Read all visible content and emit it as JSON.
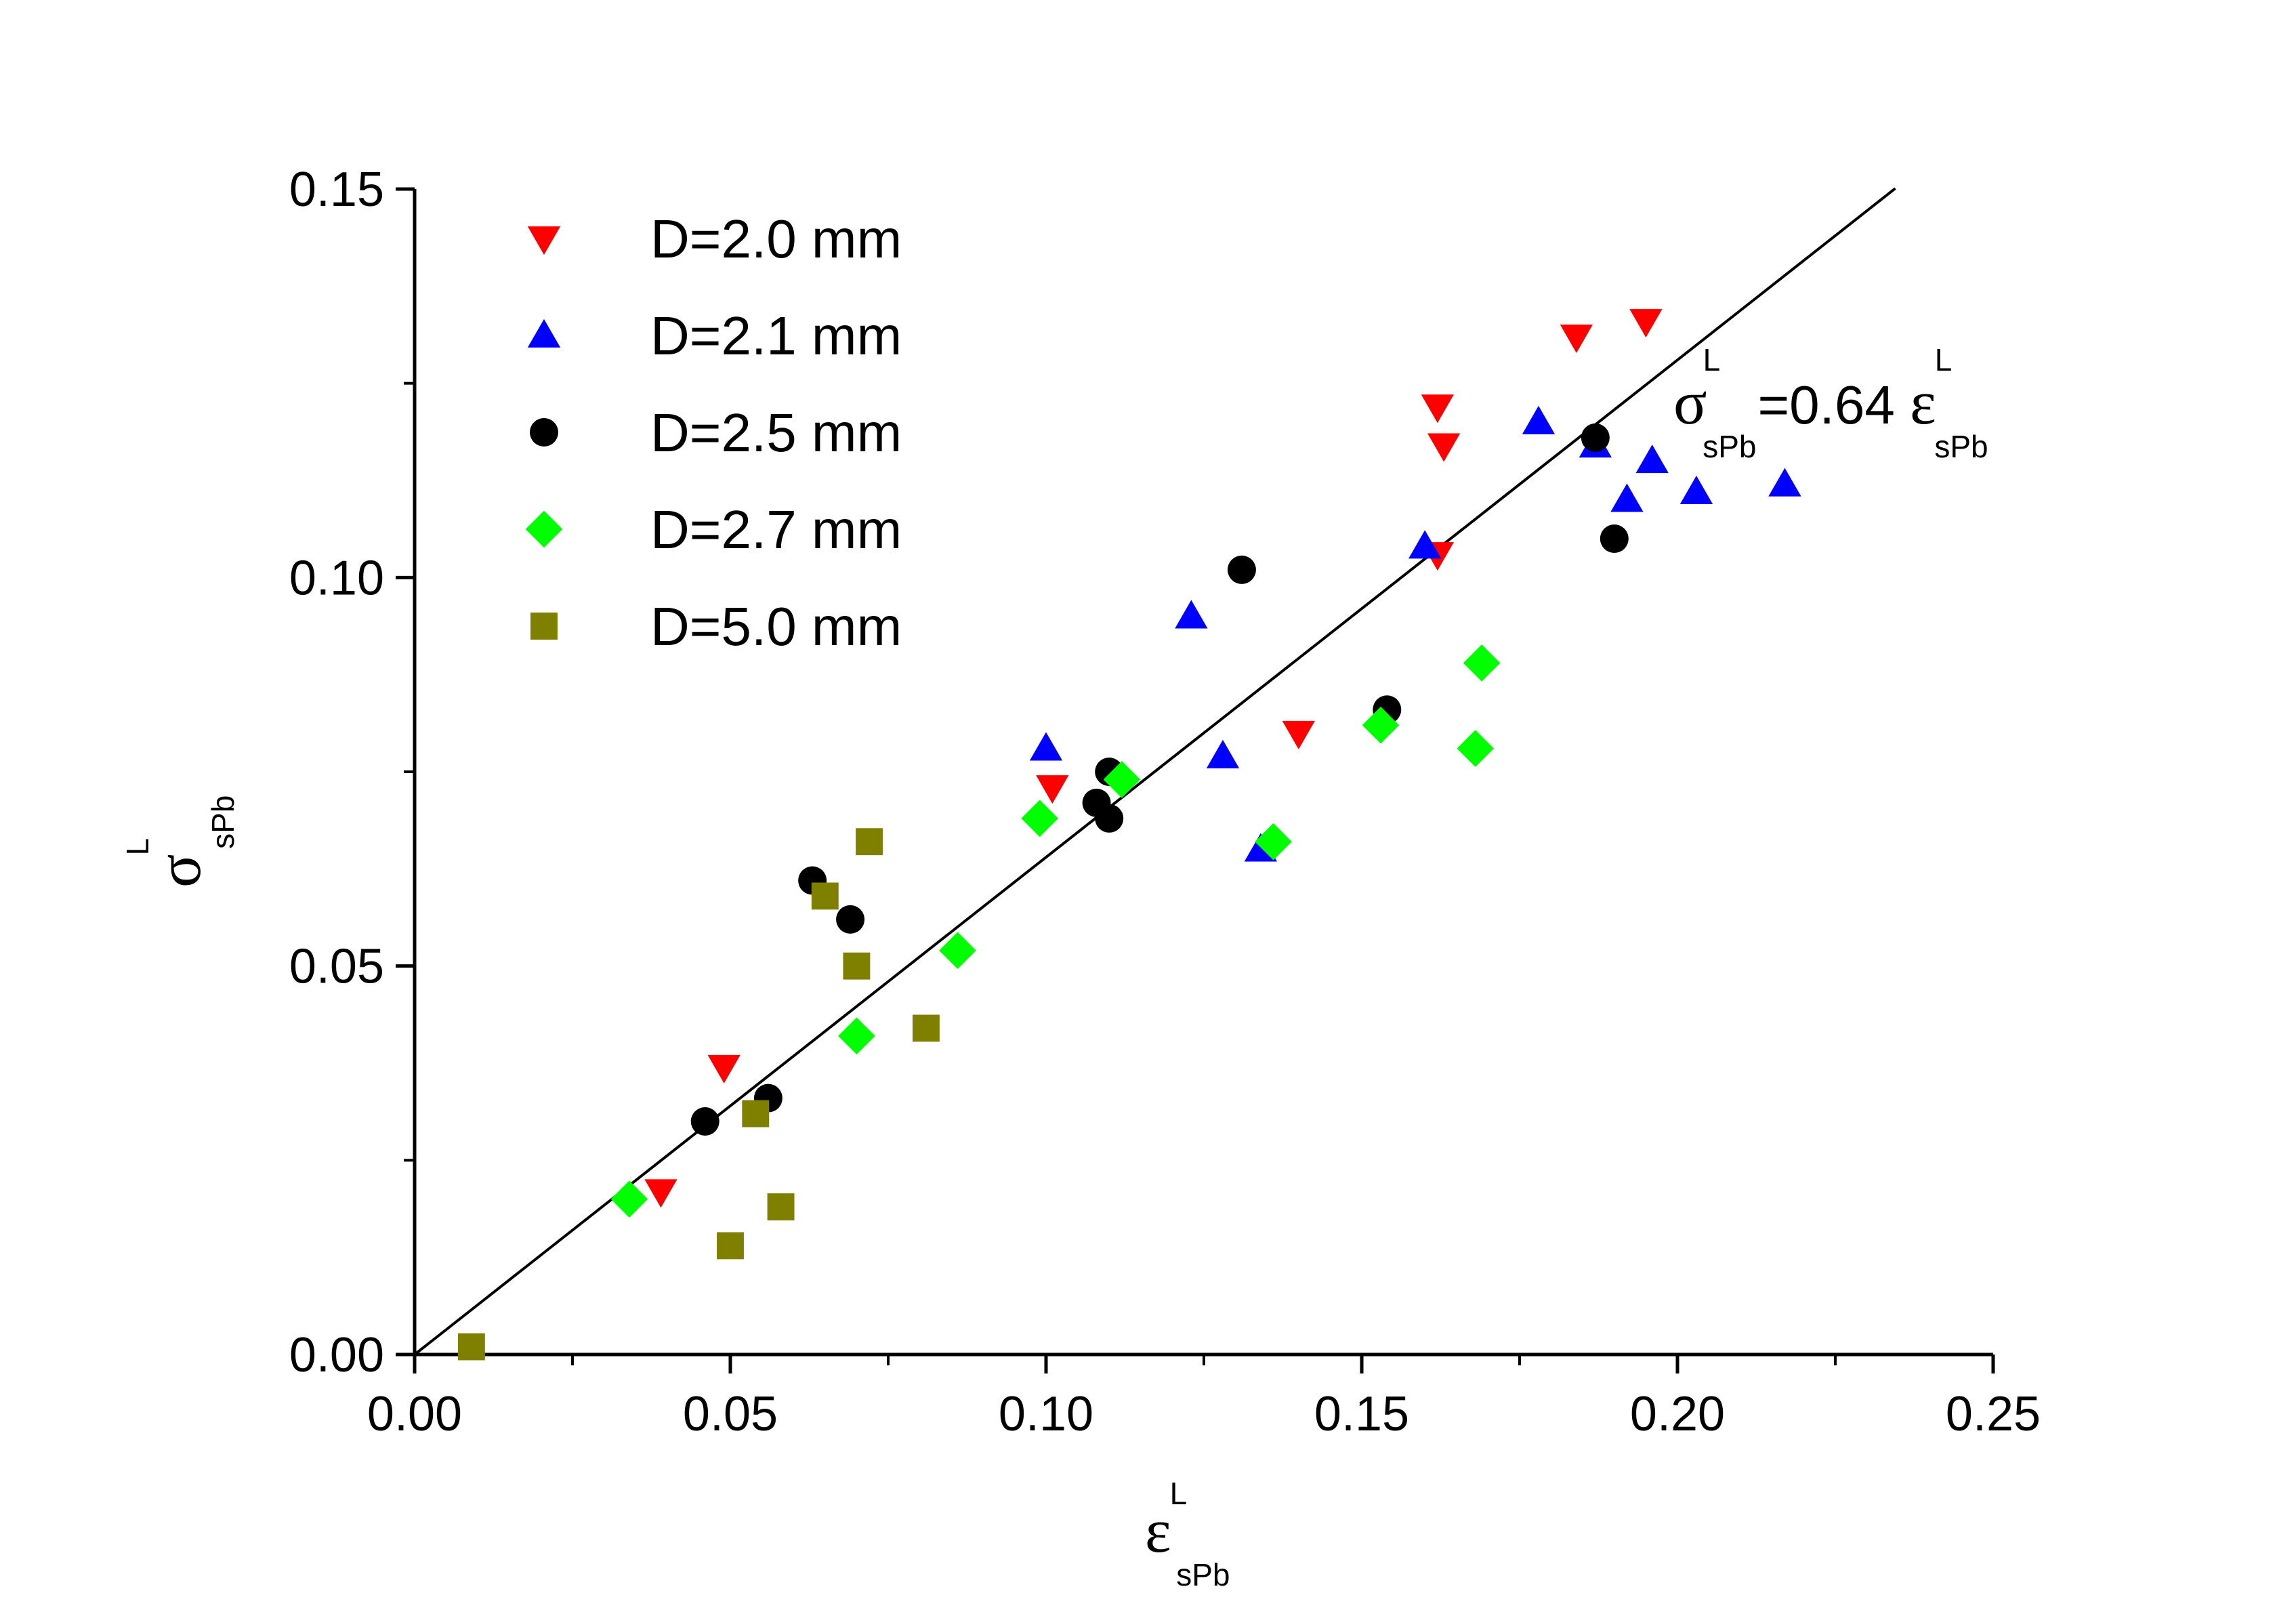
{
  "chart_data": {
    "type": "scatter",
    "title": "",
    "xlabel": {
      "symbol": "ε",
      "superscript": "L",
      "subscript": "sPb"
    },
    "ylabel": {
      "symbol": "σ",
      "superscript": "L",
      "subscript": "sPb"
    },
    "xlim": [
      0.0,
      0.25
    ],
    "ylim": [
      0.0,
      0.15
    ],
    "xticks": [
      "0.00",
      "0.05",
      "0.10",
      "0.15",
      "0.20",
      "0.25"
    ],
    "yticks": [
      "0.00",
      "0.05",
      "0.10",
      "0.15"
    ],
    "legend_position": "top-left",
    "fit_line": {
      "slope": 0.64,
      "x_range": [
        0.0,
        0.2345
      ],
      "label": {
        "sigma": "σ",
        "sup": "L",
        "sub": "sPb",
        "middle": "=0.64 ",
        "epsilon": "ε",
        "sup2": "L",
        "sub2": "sPb"
      }
    },
    "series": [
      {
        "name": "D=2.0 mm",
        "marker": "triangle-down",
        "color": "#ff0000",
        "points": [
          [
            0.039,
            0.021
          ],
          [
            0.049,
            0.037
          ],
          [
            0.101,
            0.073
          ],
          [
            0.14,
            0.08
          ],
          [
            0.162,
            0.103
          ],
          [
            0.162,
            0.122
          ],
          [
            0.163,
            0.117
          ],
          [
            0.184,
            0.131
          ],
          [
            0.195,
            0.133
          ]
        ]
      },
      {
        "name": "D=2.1 mm",
        "marker": "triangle-up",
        "color": "#0000ff",
        "points": [
          [
            0.1,
            0.078
          ],
          [
            0.123,
            0.095
          ],
          [
            0.128,
            0.077
          ],
          [
            0.134,
            0.065
          ],
          [
            0.16,
            0.104
          ],
          [
            0.178,
            0.12
          ],
          [
            0.187,
            0.117
          ],
          [
            0.192,
            0.11
          ],
          [
            0.196,
            0.115
          ],
          [
            0.203,
            0.111
          ],
          [
            0.217,
            0.112
          ]
        ]
      },
      {
        "name": "D=2.5 mm",
        "marker": "circle",
        "color": "#000000",
        "points": [
          [
            0.046,
            0.03
          ],
          [
            0.056,
            0.033
          ],
          [
            0.063,
            0.061
          ],
          [
            0.069,
            0.056
          ],
          [
            0.108,
            0.071
          ],
          [
            0.11,
            0.075
          ],
          [
            0.11,
            0.069
          ],
          [
            0.131,
            0.101
          ],
          [
            0.154,
            0.083
          ],
          [
            0.187,
            0.118
          ],
          [
            0.19,
            0.105
          ]
        ]
      },
      {
        "name": "D=2.7 mm",
        "marker": "diamond",
        "color": "#00ff00",
        "points": [
          [
            0.034,
            0.02
          ],
          [
            0.07,
            0.041
          ],
          [
            0.086,
            0.052
          ],
          [
            0.099,
            0.069
          ],
          [
            0.112,
            0.074
          ],
          [
            0.136,
            0.066
          ],
          [
            0.153,
            0.081
          ],
          [
            0.168,
            0.078
          ],
          [
            0.169,
            0.089
          ]
        ]
      },
      {
        "name": "D=5.0 mm",
        "marker": "square",
        "color": "#808000",
        "points": [
          [
            0.009,
            0.001
          ],
          [
            0.05,
            0.014
          ],
          [
            0.054,
            0.031
          ],
          [
            0.058,
            0.019
          ],
          [
            0.065,
            0.059
          ],
          [
            0.07,
            0.05
          ],
          [
            0.072,
            0.066
          ],
          [
            0.081,
            0.042
          ]
        ]
      }
    ]
  }
}
